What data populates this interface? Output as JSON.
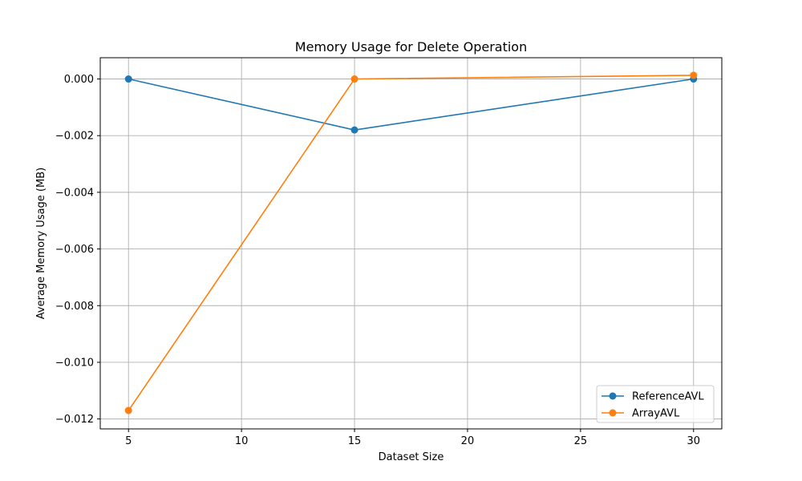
{
  "chart_data": {
    "type": "line",
    "title": "Memory Usage for Delete Operation",
    "xlabel": "Dataset Size",
    "ylabel": "Average Memory Usage (MB)",
    "xlim": [
      3.75,
      31.25
    ],
    "ylim": [
      -0.01235,
      0.00075
    ],
    "xticks": [
      5,
      10,
      15,
      20,
      25,
      30
    ],
    "xtick_labels": [
      "5",
      "10",
      "15",
      "20",
      "25",
      "30"
    ],
    "yticks": [
      0.0,
      -0.002,
      -0.004,
      -0.006,
      -0.008,
      -0.01,
      -0.012
    ],
    "ytick_labels": [
      "0.000",
      "−0.002",
      "−0.004",
      "−0.006",
      "−0.008",
      "−0.010",
      "−0.012"
    ],
    "grid": true,
    "legend_position": "bottom-right",
    "series": [
      {
        "name": "ReferenceAVL",
        "color": "#1f77b4",
        "x": [
          5,
          15,
          30
        ],
        "y": [
          0.0,
          -0.0018,
          0.0
        ]
      },
      {
        "name": "ArrayAVL",
        "color": "#ff7f0e",
        "x": [
          5,
          15,
          30
        ],
        "y": [
          -0.0117,
          0.0,
          0.00013
        ]
      }
    ]
  }
}
